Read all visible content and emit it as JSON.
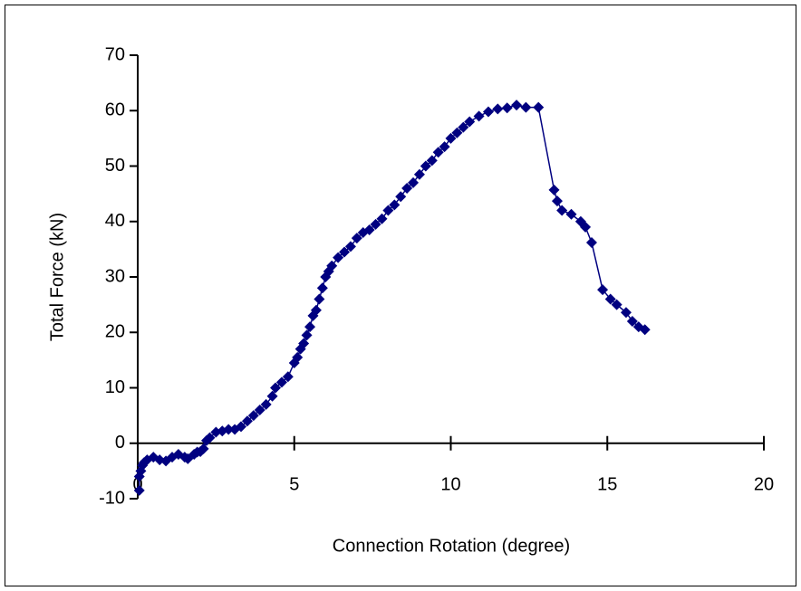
{
  "chart_data": {
    "type": "line",
    "xlabel": "Connection Rotation (degree)",
    "ylabel": "Total Force (kN)",
    "xlim": [
      0,
      20
    ],
    "xticks": [
      0,
      5,
      10,
      15,
      20
    ],
    "ylim": [
      -10,
      70
    ],
    "yticks": [
      -10,
      0,
      10,
      20,
      30,
      40,
      50,
      60,
      70
    ],
    "marker": "diamond",
    "series": [
      {
        "color": "#000080",
        "x": [
          0.05,
          0.05,
          0.1,
          0.15,
          0.2,
          0.3,
          0.5,
          0.7,
          0.9,
          1.1,
          1.3,
          1.5,
          1.6,
          1.8,
          1.9,
          2.0,
          2.1,
          2.2,
          2.3,
          2.5,
          2.7,
          2.9,
          3.1,
          3.3,
          3.5,
          3.7,
          3.9,
          4.1,
          4.3,
          4.4,
          4.6,
          4.8,
          5.0,
          5.1,
          5.2,
          5.3,
          5.4,
          5.5,
          5.6,
          5.7,
          5.8,
          5.9,
          6.0,
          6.1,
          6.2,
          6.4,
          6.6,
          6.8,
          7.0,
          7.2,
          7.4,
          7.6,
          7.8,
          8.0,
          8.2,
          8.4,
          8.6,
          8.8,
          9.0,
          9.2,
          9.4,
          9.6,
          9.8,
          10.0,
          10.2,
          10.4,
          10.6,
          10.9,
          11.2,
          11.5,
          11.8,
          12.1,
          12.4,
          12.8,
          13.3,
          13.4,
          13.55,
          13.85,
          14.15,
          14.3,
          14.5,
          14.85,
          15.1,
          15.3,
          15.6,
          15.8,
          16.0,
          16.2
        ],
        "values": [
          -8.5,
          -6,
          -5,
          -4,
          -3.5,
          -3,
          -2.5,
          -3,
          -3.2,
          -2.5,
          -2,
          -2.5,
          -2.8,
          -2,
          -1.6,
          -1.5,
          -1,
          0.5,
          1,
          2,
          2.2,
          2.5,
          2.5,
          3,
          4,
          5,
          6,
          7,
          8.5,
          10,
          11,
          12,
          14.5,
          15.5,
          17,
          18,
          19.5,
          21,
          23,
          24,
          26,
          28,
          30,
          31,
          32,
          33.5,
          34.5,
          35.5,
          37,
          38,
          38.5,
          39.5,
          40.5,
          42,
          43,
          44.5,
          46,
          47,
          48.5,
          50,
          51,
          52.5,
          53.5,
          55,
          56,
          57,
          58,
          59,
          59.8,
          60.3,
          60.5,
          61,
          60.6,
          60.6,
          45.7,
          43.7,
          42,
          41.3,
          40,
          39,
          36.2,
          27.7,
          26,
          25,
          23.6,
          22,
          21,
          20.5
        ]
      }
    ]
  }
}
